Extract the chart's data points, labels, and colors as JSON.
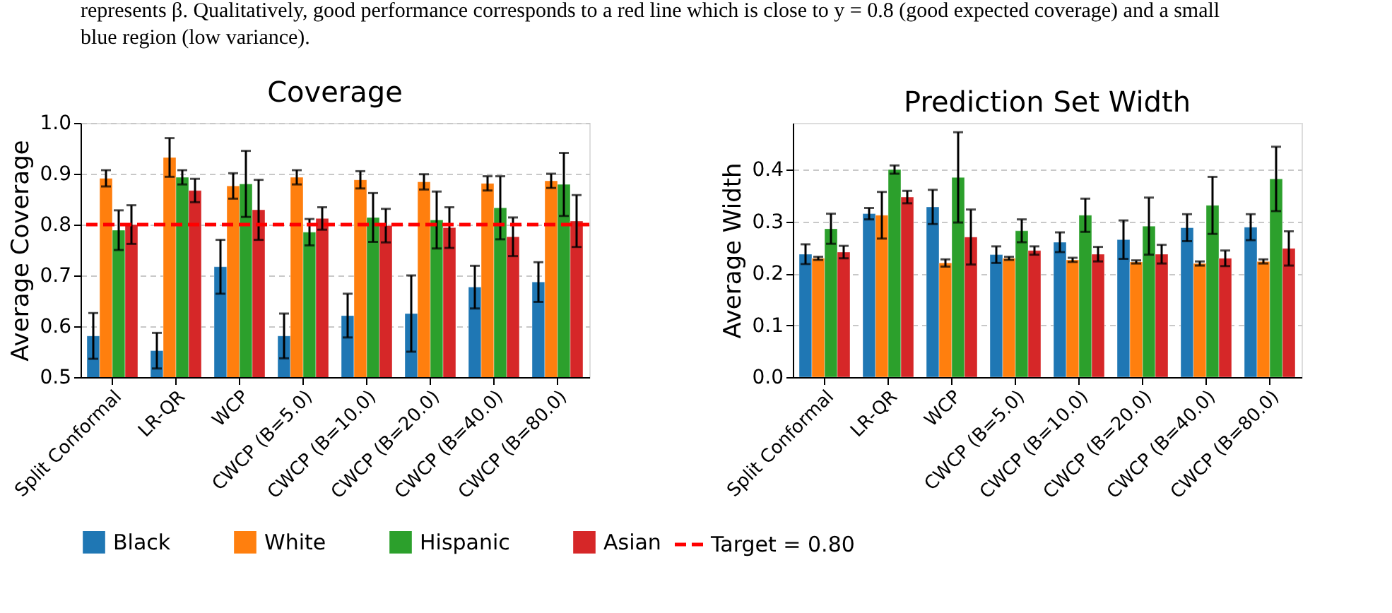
{
  "chart_data": [
    {
      "type": "bar",
      "title": "Coverage",
      "ylabel": "Average Coverage",
      "categories": [
        "Split Conformal",
        "LR-QR",
        "WCP",
        "CWCP (B=5.0)",
        "CWCP (B=10.0)",
        "CWCP (B=20.0)",
        "CWCP (B=40.0)",
        "CWCP (B=80.0)"
      ],
      "series": [
        {
          "name": "Black",
          "color": "#1f77b4",
          "values": [
            0.581,
            0.552,
            0.717,
            0.581,
            0.621,
            0.625,
            0.677,
            0.687
          ],
          "errors": [
            0.045,
            0.035,
            0.053,
            0.044,
            0.043,
            0.075,
            0.042,
            0.039
          ]
        },
        {
          "name": "White",
          "color": "#ff7f0e",
          "values": [
            0.891,
            0.932,
            0.876,
            0.893,
            0.888,
            0.884,
            0.881,
            0.886
          ],
          "errors": [
            0.016,
            0.038,
            0.025,
            0.014,
            0.017,
            0.015,
            0.014,
            0.014
          ]
        },
        {
          "name": "Hispanic",
          "color": "#2ca02c",
          "values": [
            0.789,
            0.893,
            0.88,
            0.785,
            0.814,
            0.809,
            0.833,
            0.879
          ],
          "errors": [
            0.039,
            0.014,
            0.065,
            0.026,
            0.048,
            0.056,
            0.062,
            0.062
          ]
        },
        {
          "name": "Asian",
          "color": "#d62728",
          "values": [
            0.8,
            0.867,
            0.829,
            0.812,
            0.798,
            0.794,
            0.776,
            0.807
          ],
          "errors": [
            0.038,
            0.023,
            0.059,
            0.022,
            0.033,
            0.04,
            0.038,
            0.051
          ]
        }
      ],
      "ylim": [
        0.5,
        1.0
      ],
      "yticks": [
        0.5,
        0.6,
        0.7,
        0.8,
        0.9,
        {
          "value": 1,
          "label": "1.0"
        }
      ],
      "grid": "y",
      "legend": "bottom",
      "ref_lines": [
        {
          "axis": "y",
          "value": 0.8,
          "label": "Target = 0.80",
          "color": "#ff0000",
          "line_style": "dashed"
        }
      ],
      "annotations": [
        "represents β. Qualitatively, good performance corresponds to a red line which is close to y = 0.8 (good expected coverage) and a small\nblue region (low variance)."
      ]
    },
    {
      "type": "bar",
      "title": "Prediction Set Width",
      "ylabel": "Average Width",
      "categories": [
        "Split Conformal",
        "LR-QR",
        "WCP",
        "CWCP (B=5.0)",
        "CWCP (B=10.0)",
        "CWCP (B=20.0)",
        "CWCP (B=40.0)",
        "CWCP (B=80.0)"
      ],
      "series": [
        {
          "name": "Black",
          "color": "#1f77b4",
          "values": [
            0.237,
            0.315,
            0.328,
            0.236,
            0.26,
            0.265,
            0.288,
            0.289
          ],
          "errors": [
            0.019,
            0.011,
            0.033,
            0.016,
            0.019,
            0.037,
            0.026,
            0.025
          ]
        },
        {
          "name": "White",
          "color": "#ff7f0e",
          "values": [
            0.229,
            0.312,
            0.22,
            0.229,
            0.226,
            0.222,
            0.219,
            0.223
          ],
          "errors": [
            0.003,
            0.045,
            0.007,
            0.003,
            0.004,
            0.003,
            0.004,
            0.004
          ]
        },
        {
          "name": "Hispanic",
          "color": "#2ca02c",
          "values": [
            0.286,
            0.4,
            0.385,
            0.282,
            0.312,
            0.291,
            0.331,
            0.382
          ],
          "errors": [
            0.029,
            0.008,
            0.087,
            0.022,
            0.032,
            0.055,
            0.055,
            0.062
          ]
        },
        {
          "name": "Asian",
          "color": "#d62728",
          "values": [
            0.241,
            0.347,
            0.27,
            0.244,
            0.237,
            0.237,
            0.229,
            0.248
          ],
          "errors": [
            0.012,
            0.012,
            0.053,
            0.008,
            0.014,
            0.018,
            0.015,
            0.033
          ]
        }
      ],
      "ylim": [
        0.0,
        0.49
      ],
      "yticks": [
        {
          "value": 0,
          "label": "0.0"
        },
        0.1,
        0.2,
        0.3,
        0.4
      ],
      "grid": "y",
      "legend": "bottom"
    }
  ]
}
